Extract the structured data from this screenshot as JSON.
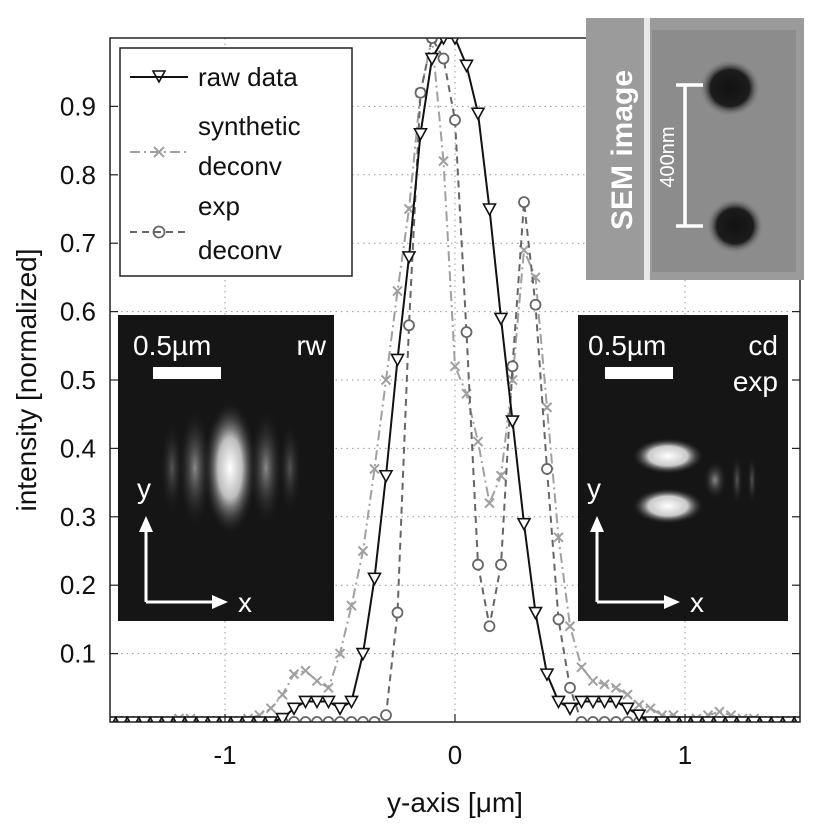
{
  "chart_data": {
    "type": "line",
    "title": "",
    "xlabel": "y-axis [μm]",
    "ylabel": "intensity [normalized]",
    "xlim": [
      -1.5,
      1.5
    ],
    "ylim": [
      0,
      1.0
    ],
    "xticks": [
      -1,
      0,
      1
    ],
    "xtick_labels": [
      "-1",
      "0",
      "1"
    ],
    "yticks": [
      0.1,
      0.2,
      0.3,
      0.4,
      0.5,
      0.6,
      0.7,
      0.8,
      0.9
    ],
    "ytick_labels": [
      "0.1",
      "0.2",
      "0.3",
      "0.4",
      "0.5",
      "0.6",
      "0.7",
      "0.8",
      "0.9"
    ],
    "grid": true,
    "legend_position": "top-left",
    "series": [
      {
        "name": "raw data",
        "color": "#111111",
        "marker": "triangle-down",
        "style": "solid",
        "x": [
          -1.5,
          -1.45,
          -1.4,
          -1.35,
          -1.3,
          -1.25,
          -1.2,
          -1.15,
          -1.1,
          -1.05,
          -1.0,
          -0.95,
          -0.9,
          -0.85,
          -0.8,
          -0.75,
          -0.7,
          -0.65,
          -0.6,
          -0.55,
          -0.5,
          -0.45,
          -0.4,
          -0.35,
          -0.3,
          -0.25,
          -0.2,
          -0.15,
          -0.1,
          -0.05,
          0.0,
          0.05,
          0.1,
          0.15,
          0.2,
          0.25,
          0.3,
          0.35,
          0.4,
          0.45,
          0.5,
          0.55,
          0.6,
          0.65,
          0.7,
          0.75,
          0.8,
          0.85,
          0.9,
          0.95,
          1.0,
          1.05,
          1.1,
          1.15,
          1.2,
          1.25,
          1.3,
          1.35,
          1.4,
          1.45,
          1.5
        ],
        "y": [
          0,
          0,
          0,
          0,
          0,
          0,
          0,
          0,
          0,
          0,
          0,
          0,
          0,
          0,
          0,
          0.005,
          0.02,
          0.03,
          0.03,
          0.03,
          0.02,
          0.03,
          0.1,
          0.21,
          0.36,
          0.53,
          0.68,
          0.86,
          0.97,
          1.0,
          1.0,
          0.96,
          0.89,
          0.75,
          0.59,
          0.44,
          0.29,
          0.16,
          0.07,
          0.03,
          0.02,
          0.03,
          0.03,
          0.03,
          0.03,
          0.02,
          0.01,
          0,
          0,
          0,
          0,
          0,
          0,
          0,
          0,
          0,
          0,
          0,
          0,
          0,
          0
        ]
      },
      {
        "name": "synthetic deconv",
        "color": "#a0a0a0",
        "marker": "x",
        "style": "dashdot",
        "x": [
          -1.5,
          -1.45,
          -1.4,
          -1.35,
          -1.3,
          -1.25,
          -1.2,
          -1.15,
          -1.1,
          -1.05,
          -1.0,
          -0.95,
          -0.9,
          -0.85,
          -0.8,
          -0.75,
          -0.7,
          -0.65,
          -0.6,
          -0.55,
          -0.5,
          -0.45,
          -0.4,
          -0.35,
          -0.3,
          -0.25,
          -0.2,
          -0.15,
          -0.1,
          -0.05,
          0.0,
          0.05,
          0.1,
          0.15,
          0.2,
          0.25,
          0.3,
          0.35,
          0.4,
          0.45,
          0.5,
          0.55,
          0.6,
          0.65,
          0.7,
          0.75,
          0.8,
          0.85,
          0.9,
          0.95,
          1.0,
          1.05,
          1.1,
          1.15,
          1.2,
          1.25,
          1.3,
          1.35,
          1.4,
          1.45,
          1.5
        ],
        "y": [
          0,
          0,
          0,
          0,
          0,
          0,
          0.005,
          0.005,
          0,
          0,
          0,
          0,
          0.005,
          0.01,
          0.02,
          0.04,
          0.07,
          0.075,
          0.06,
          0.05,
          0.1,
          0.17,
          0.25,
          0.37,
          0.5,
          0.63,
          0.75,
          0.92,
          1.0,
          0.82,
          0.52,
          0.48,
          0.41,
          0.32,
          0.36,
          0.5,
          0.69,
          0.65,
          0.46,
          0.27,
          0.14,
          0.08,
          0.06,
          0.055,
          0.05,
          0.04,
          0.025,
          0.02,
          0.01,
          0.01,
          0,
          0.005,
          0.01,
          0.015,
          0.01,
          0.005,
          0.005,
          0,
          0,
          0,
          0
        ]
      },
      {
        "name": "exp deconv",
        "color": "#666666",
        "marker": "circle",
        "style": "dashed",
        "x": [
          -1.5,
          -1.45,
          -1.4,
          -1.35,
          -1.3,
          -1.25,
          -1.2,
          -1.15,
          -1.1,
          -1.05,
          -1.0,
          -0.95,
          -0.9,
          -0.85,
          -0.8,
          -0.75,
          -0.7,
          -0.65,
          -0.6,
          -0.55,
          -0.5,
          -0.45,
          -0.4,
          -0.35,
          -0.3,
          -0.25,
          -0.2,
          -0.15,
          -0.1,
          -0.05,
          0.0,
          0.05,
          0.1,
          0.15,
          0.2,
          0.25,
          0.3,
          0.35,
          0.4,
          0.45,
          0.5,
          0.55,
          0.6,
          0.65,
          0.7,
          0.75,
          0.8,
          0.85,
          0.9,
          0.95,
          1.0,
          1.05,
          1.1,
          1.15,
          1.2,
          1.25,
          1.3,
          1.35,
          1.4,
          1.45,
          1.5
        ],
        "y": [
          0,
          0,
          0,
          0,
          0,
          0,
          0,
          0,
          0,
          0,
          0,
          0,
          0,
          0,
          0,
          0,
          0,
          0,
          0,
          0,
          0,
          0,
          0,
          0,
          0.01,
          0.16,
          0.58,
          0.92,
          1.0,
          0.97,
          0.88,
          0.57,
          0.23,
          0.14,
          0.23,
          0.52,
          0.76,
          0.61,
          0.37,
          0.15,
          0.05,
          0,
          0,
          0,
          0,
          0,
          0,
          0,
          0,
          0,
          0,
          0,
          0,
          0,
          0,
          0,
          0,
          0,
          0,
          0,
          0
        ]
      }
    ],
    "legend": [
      {
        "label_lines": [
          "raw data"
        ]
      },
      {
        "label_lines": [
          "synthetic",
          "deconv"
        ]
      },
      {
        "label_lines": [
          "exp",
          "deconv"
        ]
      }
    ],
    "insets": {
      "left": {
        "scale": "0.5µm",
        "tag": "rw",
        "axis_y": "y",
        "axis_x": "x"
      },
      "right": {
        "scale": "0.5µm",
        "tag_lines": [
          "cd",
          "exp"
        ],
        "axis_y": "y",
        "axis_x": "x"
      },
      "sem": {
        "label": "SEM image",
        "scale": "400nm"
      }
    }
  }
}
